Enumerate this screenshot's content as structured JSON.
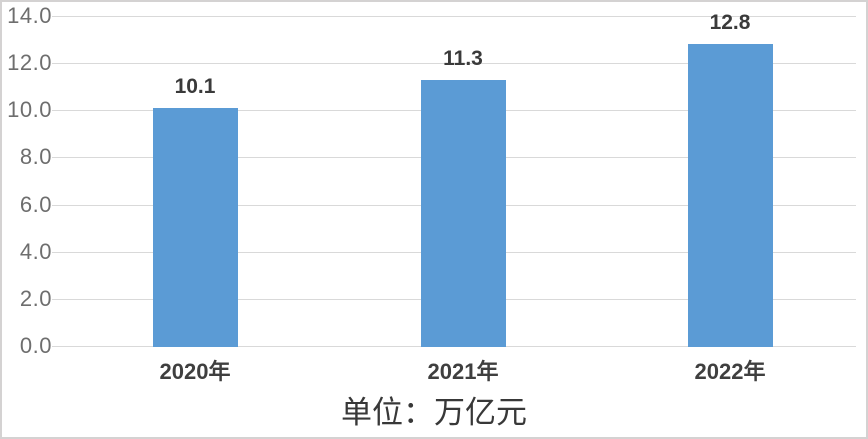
{
  "chart_data": {
    "type": "bar",
    "categories": [
      "2020年",
      "2021年",
      "2022年"
    ],
    "values": [
      10.1,
      11.3,
      12.8
    ],
    "value_labels": [
      "10.1",
      "11.3",
      "12.8"
    ],
    "title": "",
    "xlabel": "",
    "ylabel": "",
    "unit_label": "单位：万亿元",
    "ylim": [
      0,
      14
    ],
    "ytick_step": 2,
    "ytick_labels": [
      "0.0",
      "2.0",
      "4.0",
      "6.0",
      "8.0",
      "10.0",
      "12.0",
      "14.0"
    ],
    "grid": true,
    "legend": false,
    "colors": {
      "bar": "#5B9BD5",
      "gridline": "#D9D9D9",
      "tick": "#D9D9D9",
      "axis_label": "#6E6E6E",
      "data_label": "#3A3A3A",
      "category_label": "#3F3F3F",
      "unit_text": "#383838",
      "frame_border": "#D4D2D2",
      "background": "#FFFFFF"
    }
  }
}
